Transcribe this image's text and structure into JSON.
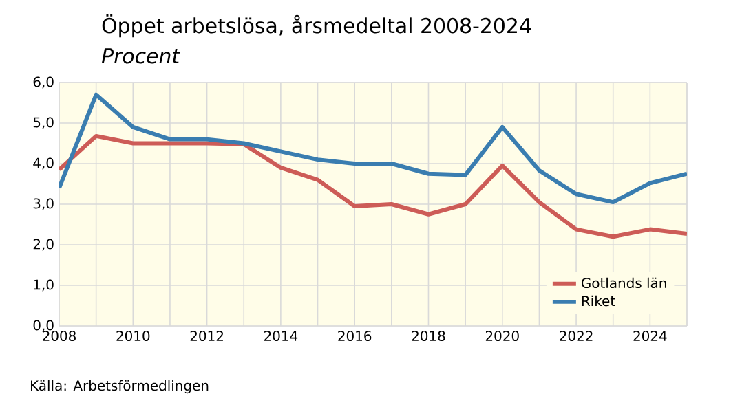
{
  "chart_data": {
    "type": "line",
    "title": "Öppet arbetslösa, årsmedeltal 2008-2024",
    "subtitle": "Procent",
    "x": [
      2008,
      2009,
      2010,
      2011,
      2012,
      2013,
      2014,
      2015,
      2016,
      2017,
      2018,
      2019,
      2020,
      2021,
      2022,
      2023,
      2024,
      2025
    ],
    "series": [
      {
        "name": "Gotlands län",
        "color": "#cd5c57",
        "values": [
          3.85,
          4.68,
          4.5,
          4.5,
          4.5,
          4.48,
          3.9,
          3.6,
          2.95,
          3.0,
          2.75,
          3.0,
          3.95,
          3.05,
          2.38,
          2.2,
          2.38,
          2.27
        ]
      },
      {
        "name": "Riket",
        "color": "#3a7db0",
        "values": [
          3.4,
          5.7,
          4.9,
          4.6,
          4.6,
          4.5,
          4.3,
          4.1,
          4.0,
          4.0,
          3.75,
          3.72,
          4.9,
          3.83,
          3.25,
          3.05,
          3.52,
          3.75
        ]
      }
    ],
    "xlim": [
      2008,
      2025
    ],
    "xticks": [
      2008,
      {
        "value": 2009,
        "label": null
      },
      2010,
      {
        "value": 2011,
        "label": null
      },
      2012,
      {
        "value": 2013,
        "label": null
      },
      2014,
      {
        "value": 2015,
        "label": null
      },
      2016,
      {
        "value": 2017,
        "label": null
      },
      2018,
      {
        "value": 2019,
        "label": null
      },
      2020,
      {
        "value": 2021,
        "label": null
      },
      2022,
      {
        "value": 2023,
        "label": null
      },
      2024,
      {
        "value": 2025,
        "label": null
      }
    ],
    "ylim": [
      0,
      6
    ],
    "yticks": [
      {
        "value": 0,
        "label": "0,0"
      },
      {
        "value": 1,
        "label": "1,0"
      },
      {
        "value": 2,
        "label": "2,0"
      },
      {
        "value": 3,
        "label": "3,0"
      },
      {
        "value": 4,
        "label": "4,0"
      },
      {
        "value": 5,
        "label": "5,0"
      },
      {
        "value": 6,
        "label": "6,0"
      }
    ],
    "grid": true,
    "legend": "bottom right",
    "marker": "none",
    "line_style": "solid",
    "annotations": [
      "Källa: Arbetsförmedlingen"
    ]
  }
}
